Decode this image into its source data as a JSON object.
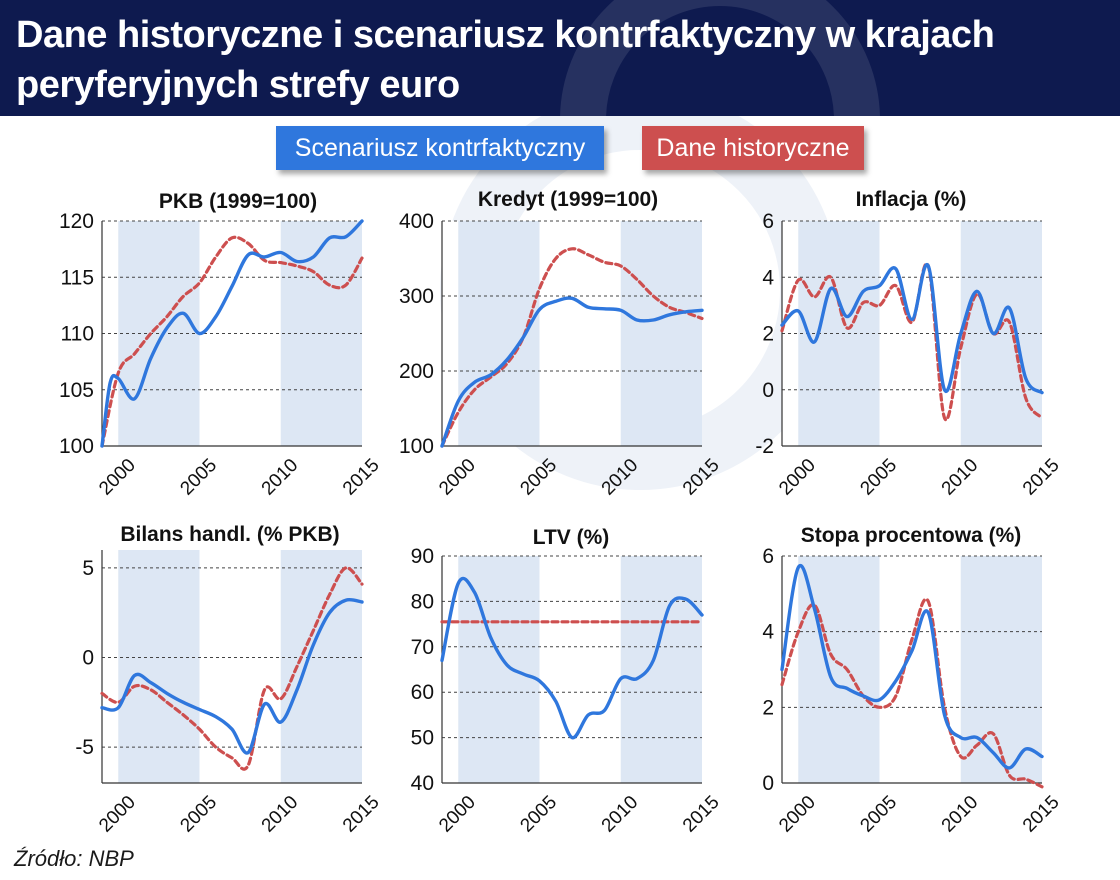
{
  "title": "Dane historyczne i scenariusz kontrfaktyczny w krajach peryferyjnych strefy euro",
  "legend": {
    "counterfactual": "Scenariusz kontrfaktyczny",
    "historical": "Dane historyczne"
  },
  "source": "Źródło: NBP",
  "colors": {
    "header": "#0e1a4f",
    "counterfactual": "#2f77dd",
    "historical": "#cd4f4f",
    "band": "#dde7f4"
  },
  "chart_data": [
    {
      "type": "line",
      "title": "PKB (1999=100)",
      "ylim": [
        100,
        120
      ],
      "yticks": [
        100,
        105,
        110,
        115,
        120
      ],
      "ytick_labels": [
        "100",
        "105",
        "110",
        "115",
        "120"
      ],
      "xticks": [
        2000,
        2005,
        2010,
        2015
      ],
      "xlim": [
        1999,
        2015
      ],
      "grid": "horizontal dashed",
      "series": [
        {
          "name": "Scenariusz kontrfaktyczny",
          "style": "solid",
          "x": [
            1999,
            1999.5,
            2000,
            2001,
            2002,
            2003,
            2004,
            2005,
            2006,
            2007,
            2008,
            2009,
            2010,
            2011,
            2012,
            2013,
            2014,
            2015
          ],
          "values": [
            100,
            105.6,
            106,
            104.2,
            107.8,
            110.5,
            111.8,
            110,
            111.5,
            114.2,
            117,
            116.8,
            117.2,
            116.4,
            116.8,
            118.5,
            118.6,
            120
          ]
        },
        {
          "name": "Dane historyczne",
          "style": "dashed",
          "x": [
            1999,
            2000,
            2001,
            2002,
            2003,
            2004,
            2005,
            2006,
            2007,
            2008,
            2009,
            2010,
            2011,
            2012,
            2013,
            2014,
            2015
          ],
          "values": [
            100,
            106.5,
            108.2,
            110,
            111.5,
            113.3,
            114.5,
            116.8,
            118.5,
            118,
            116.5,
            116.3,
            116,
            115.5,
            114.3,
            114.3,
            116.7
          ]
        }
      ]
    },
    {
      "type": "line",
      "title": "Kredyt (1999=100)",
      "ylim": [
        100,
        400
      ],
      "yticks": [
        100,
        200,
        300,
        400
      ],
      "ytick_labels": [
        "100",
        "200",
        "300",
        "400"
      ],
      "xticks": [
        2000,
        2005,
        2010,
        2015
      ],
      "xlim": [
        1999,
        2015
      ],
      "grid": "horizontal dashed",
      "series": [
        {
          "name": "Scenariusz kontrfaktyczny",
          "style": "solid",
          "x": [
            1999,
            2000,
            2001,
            2002,
            2003,
            2004,
            2005,
            2006,
            2007,
            2008,
            2009,
            2010,
            2011,
            2012,
            2013,
            2014,
            2015
          ],
          "values": [
            100,
            160,
            185,
            195,
            215,
            245,
            282,
            293,
            297,
            285,
            283,
            281,
            268,
            268,
            275,
            279,
            281
          ]
        },
        {
          "name": "Dane historyczne",
          "style": "dashed",
          "x": [
            1999,
            2000,
            2001,
            2002,
            2003,
            2004,
            2005,
            2006,
            2007,
            2008,
            2009,
            2010,
            2011,
            2012,
            2013,
            2014,
            2015
          ],
          "values": [
            100,
            145,
            175,
            192,
            210,
            245,
            310,
            350,
            363,
            355,
            345,
            340,
            322,
            300,
            285,
            278,
            270
          ]
        }
      ]
    },
    {
      "type": "line",
      "title": "Inflacja (%)",
      "ylim": [
        -2,
        6
      ],
      "yticks": [
        -2,
        0,
        2,
        4,
        6
      ],
      "ytick_labels": [
        "-2",
        "0",
        "2",
        "4",
        "6"
      ],
      "xticks": [
        2000,
        2005,
        2010,
        2015
      ],
      "xlim": [
        1999,
        2015
      ],
      "grid": "horizontal dashed",
      "series": [
        {
          "name": "Scenariusz kontrfaktyczny",
          "style": "solid",
          "x": [
            1999,
            2000,
            2001,
            2002,
            2003,
            2004,
            2005,
            2006,
            2007,
            2008,
            2009,
            2010,
            2011,
            2012,
            2013,
            2014,
            2015
          ],
          "values": [
            2.3,
            2.8,
            1.7,
            3.6,
            2.6,
            3.5,
            3.7,
            4.3,
            2.5,
            4.4,
            0.0,
            2.0,
            3.5,
            2.0,
            2.9,
            0.4,
            -0.1
          ]
        },
        {
          "name": "Dane historyczne",
          "style": "dashed",
          "x": [
            1999,
            2000,
            2001,
            2002,
            2003,
            2004,
            2005,
            2006,
            2007,
            2008,
            2009,
            2010,
            2011,
            2012,
            2013,
            2014,
            2015
          ],
          "values": [
            2.1,
            3.9,
            3.3,
            4.0,
            2.2,
            3.1,
            3.0,
            3.7,
            2.4,
            4.4,
            -1.0,
            1.5,
            3.4,
            2.0,
            2.4,
            -0.3,
            -1.0
          ]
        }
      ]
    },
    {
      "type": "line",
      "title": "Bilans handl. (% PKB)",
      "ylim": [
        -7,
        6
      ],
      "yticks": [
        -5,
        0,
        5
      ],
      "ytick_labels": [
        "-5",
        "0",
        "5"
      ],
      "xticks": [
        2000,
        2005,
        2010,
        2015
      ],
      "xlim": [
        1999,
        2015
      ],
      "grid": "horizontal dashed",
      "series": [
        {
          "name": "Scenariusz kontrfaktyczny",
          "style": "solid",
          "x": [
            1999,
            2000,
            2001,
            2002,
            2003,
            2004,
            2005,
            2006,
            2007,
            2008,
            2009,
            2010,
            2011,
            2012,
            2013,
            2014,
            2015
          ],
          "values": [
            -2.8,
            -2.8,
            -1.0,
            -1.4,
            -2.0,
            -2.5,
            -2.9,
            -3.3,
            -4.0,
            -5.3,
            -2.6,
            -3.6,
            -1.8,
            0.7,
            2.5,
            3.2,
            3.1
          ]
        },
        {
          "name": "Dane historyczne",
          "style": "dashed",
          "x": [
            1999,
            2000,
            2001,
            2002,
            2003,
            2004,
            2005,
            2006,
            2007,
            2008,
            2009,
            2010,
            2011,
            2012,
            2013,
            2014,
            2015
          ],
          "values": [
            -2.0,
            -2.5,
            -1.6,
            -1.8,
            -2.5,
            -3.2,
            -4.0,
            -5.0,
            -5.6,
            -6.0,
            -1.8,
            -2.3,
            -0.5,
            1.5,
            3.5,
            5.0,
            4.1
          ]
        }
      ]
    },
    {
      "type": "line",
      "title": "LTV (%)",
      "ylim": [
        40,
        90
      ],
      "yticks": [
        40,
        50,
        60,
        70,
        80,
        90
      ],
      "ytick_labels": [
        "40",
        "50",
        "60",
        "70",
        "80",
        "90"
      ],
      "xticks": [
        2000,
        2005,
        2010,
        2015
      ],
      "xlim": [
        1999,
        2015
      ],
      "grid": "horizontal dashed",
      "series": [
        {
          "name": "Scenariusz kontrfaktyczny",
          "style": "solid",
          "x": [
            1999,
            2000,
            2001,
            2002,
            2003,
            2004,
            2005,
            2006,
            2007,
            2008,
            2009,
            2010,
            2011,
            2012,
            2013,
            2014,
            2015
          ],
          "values": [
            67,
            84,
            82,
            72,
            66,
            64,
            62.5,
            58,
            50,
            55,
            56,
            63,
            63,
            67,
            79,
            80.5,
            77
          ]
        },
        {
          "name": "Dane historyczne",
          "style": "dashed",
          "x": [
            1999,
            2015
          ],
          "values": [
            75.5,
            75.5
          ]
        }
      ]
    },
    {
      "type": "line",
      "title": "Stopa procentowa (%)",
      "ylim": [
        0,
        6
      ],
      "yticks": [
        0,
        2,
        4,
        6
      ],
      "ytick_labels": [
        "0",
        "2",
        "4",
        "6"
      ],
      "xticks": [
        2000,
        2005,
        2010,
        2015
      ],
      "xlim": [
        1999,
        2015
      ],
      "grid": "horizontal dashed",
      "series": [
        {
          "name": "Scenariusz kontrfaktyczny",
          "style": "solid",
          "x": [
            1999,
            2000,
            2001,
            2002,
            2003,
            2004,
            2005,
            2006,
            2007,
            2008,
            2009,
            2010,
            2011,
            2012,
            2013,
            2014,
            2015
          ],
          "values": [
            3.0,
            5.7,
            4.6,
            2.8,
            2.5,
            2.3,
            2.2,
            2.7,
            3.5,
            4.5,
            1.8,
            1.2,
            1.2,
            0.8,
            0.4,
            0.9,
            0.7
          ]
        },
        {
          "name": "Dane historyczne",
          "style": "dashed",
          "x": [
            1999,
            2000,
            2001,
            2002,
            2003,
            2004,
            2005,
            2006,
            2007,
            2008,
            2009,
            2010,
            2011,
            2012,
            2013,
            2014,
            2015
          ],
          "values": [
            2.6,
            4.0,
            4.7,
            3.4,
            3.0,
            2.3,
            2.0,
            2.3,
            3.8,
            4.8,
            2.0,
            0.7,
            1.0,
            1.3,
            0.2,
            0.1,
            -0.1
          ]
        }
      ]
    }
  ]
}
